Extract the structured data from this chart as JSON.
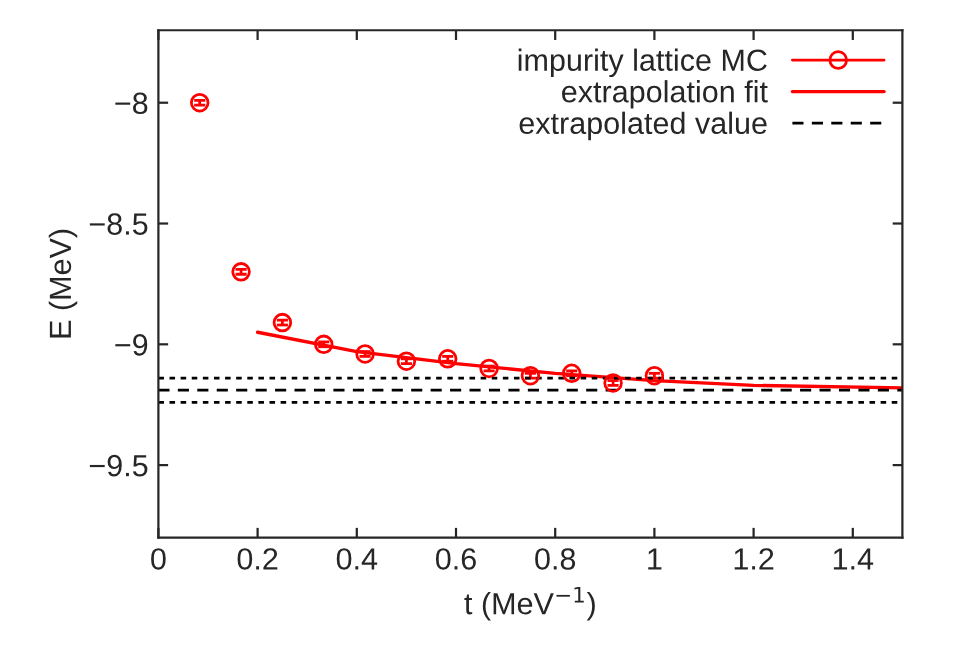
{
  "chart_data": {
    "type": "scatter",
    "xlabel": "t (MeV$^{−1}$)",
    "ylabel": "E (MeV)",
    "series": [
      {
        "name": "impurity lattice MC",
        "color": "#ff0000",
        "marker": "circle",
        "x": [
          0.0833,
          0.1667,
          0.25,
          0.3333,
          0.4167,
          0.5,
          0.5833,
          0.6667,
          0.75,
          0.8333,
          0.9167,
          1.0
        ],
        "values": [
          -8.0,
          -8.7,
          -8.91,
          -9.0,
          -9.04,
          -9.07,
          -9.06,
          -9.1,
          -9.13,
          -9.12,
          -9.16,
          -9.13
        ],
        "errors": [
          0.01,
          0.01,
          0.01,
          0.01,
          0.01,
          0.01,
          0.01,
          0.01,
          0.01,
          0.01,
          0.01,
          0.01
        ]
      },
      {
        "name": "extrapolation fit",
        "type": "line",
        "color": "#ff0000",
        "line_style": "solid",
        "x": [
          0.2,
          0.4,
          0.6,
          0.8,
          1.0,
          1.2,
          1.5
        ],
        "values": [
          -8.95,
          -9.03,
          -9.08,
          -9.12,
          -9.15,
          -9.17,
          -9.18
        ]
      }
    ],
    "ref_lines": [
      {
        "axis": "y",
        "value": -9.19,
        "label": "extrapolated value",
        "color": "#000000",
        "line_style": "dashed"
      },
      {
        "axis": "y",
        "value": -9.14,
        "label": null,
        "color": "#000000",
        "line_style": "dotted"
      },
      {
        "axis": "y",
        "value": -9.24,
        "label": null,
        "color": "#000000",
        "line_style": "dotted"
      }
    ],
    "xlim": [
      0,
      1.5
    ],
    "xticks": [
      0,
      0.2,
      0.4,
      0.6,
      0.8,
      1,
      1.2,
      1.4
    ],
    "ylim": [
      -9.8,
      -7.7
    ],
    "yticks": [
      -9.5,
      -9,
      -8.5,
      -8
    ],
    "grid": false,
    "legend": "top right"
  }
}
